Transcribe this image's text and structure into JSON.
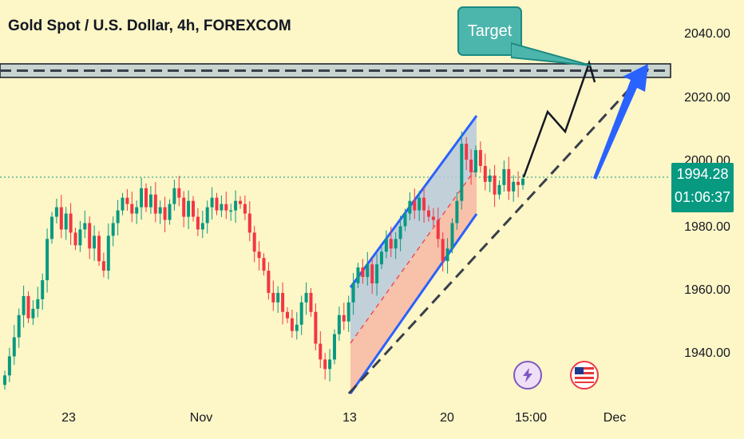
{
  "header": {
    "symbol_title": "Gold Spot / U.S. Dollar, 4h, FOREXCOM"
  },
  "price_tag": {
    "price": "1994.28",
    "countdown": "01:06:37"
  },
  "annotation": {
    "target_label": "Target"
  },
  "events": {
    "lightning_icon": "lightning-icon",
    "flag_icon": "us-flag-icon"
  },
  "colors": {
    "up": "#089981",
    "down": "#f23645",
    "channel_line": "#2962ff",
    "channel_fill_top": "#b7c9dc",
    "channel_fill_bottom": "#f7b7a3",
    "price_line": "#089981",
    "background": "#fdf6c6"
  },
  "chart_data": {
    "type": "candlestick",
    "title": "Gold Spot / U.S. Dollar, 4h, FOREXCOM",
    "y_ticks": [
      1940,
      1960,
      1980,
      2000,
      2020,
      2040
    ],
    "y_tick_labels": [
      "1940.00",
      "1960.00",
      "1980.00",
      "2000.00",
      "2020.00",
      "2040.00"
    ],
    "ylim": [
      1925,
      2050
    ],
    "x_tick_labels": [
      "23",
      "Nov",
      "13",
      "20",
      "15:00",
      "Dec"
    ],
    "last_price": 1994.28,
    "target_zone": [
      2026,
      2029
    ],
    "grid": false,
    "closes": [
      1932,
      1938,
      1944,
      1951,
      1957,
      1950,
      1953,
      1956,
      1962,
      1975,
      1982,
      1985,
      1978,
      1983,
      1977,
      1973,
      1978,
      1980,
      1972,
      1976,
      1968,
      1965,
      1976,
      1980,
      1984,
      1988,
      1986,
      1983,
      1985,
      1991,
      1985,
      1989,
      1983,
      1985,
      1981,
      1986,
      1991,
      1988,
      1982,
      1987,
      1982,
      1978,
      1980,
      1985,
      1988,
      1984,
      1986,
      1984,
      1984,
      1987,
      1986,
      1983,
      1977,
      1971,
      1969,
      1965,
      1958,
      1955,
      1958,
      1952,
      1950,
      1946,
      1948,
      1955,
      1958,
      1952,
      1942,
      1937,
      1934,
      1937,
      1945,
      1951,
      1949,
      1955,
      1961,
      1966,
      1963,
      1967,
      1961,
      1967,
      1971,
      1975,
      1972,
      1975,
      1979,
      1983,
      1987,
      1984,
      1988,
      1984,
      1982,
      1981,
      1975,
      1968,
      1972,
      1980,
      1987,
      2005,
      2000,
      1996,
      2003,
      1998,
      1993,
      1995,
      1989,
      1992,
      1997,
      1990,
      1993,
      1992,
      1994
    ]
  }
}
